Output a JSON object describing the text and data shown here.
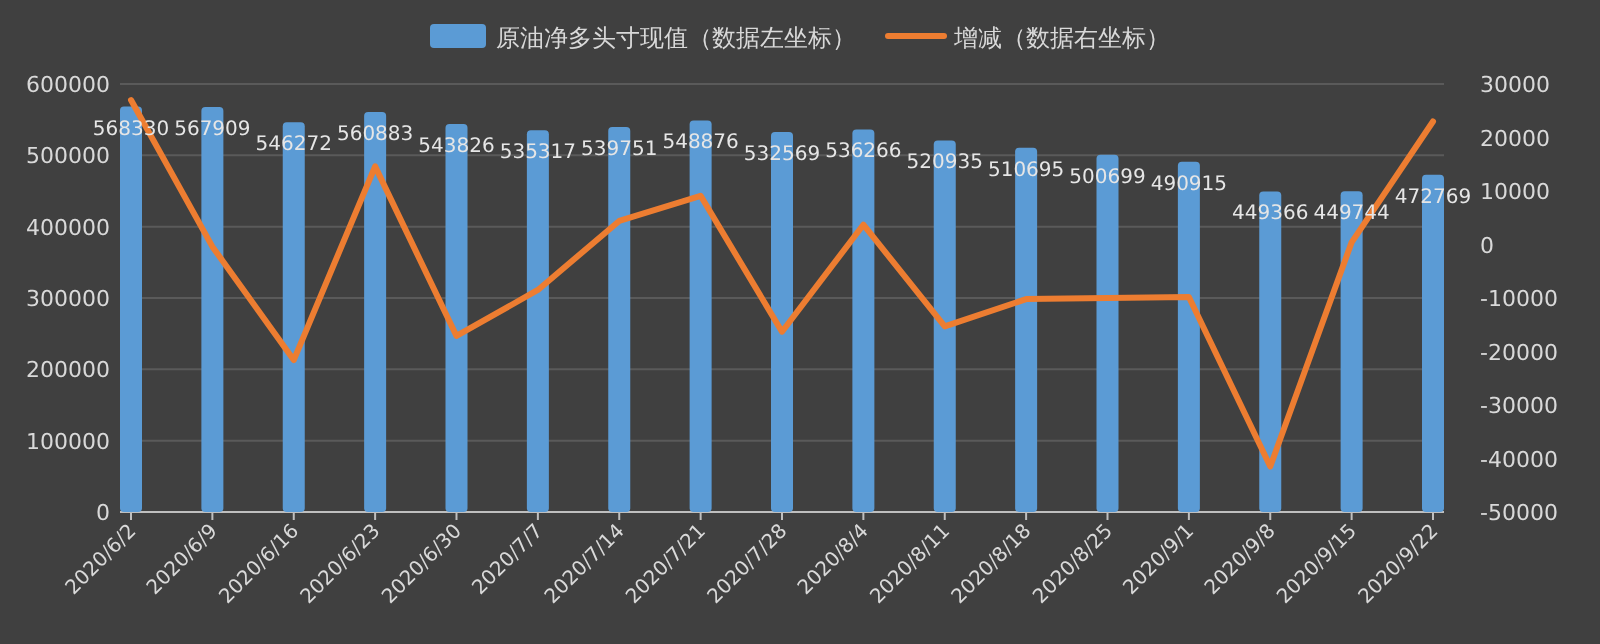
{
  "chart_data": {
    "type": "bar",
    "categories": [
      "2020/6/2",
      "2020/6/9",
      "2020/6/16",
      "2020/6/23",
      "2020/6/30",
      "2020/7/7",
      "2020/7/14",
      "2020/7/21",
      "2020/7/28",
      "2020/8/4",
      "2020/8/11",
      "2020/8/18",
      "2020/8/25",
      "2020/9/1",
      "2020/9/8",
      "2020/9/15",
      "2020/9/22"
    ],
    "series": [
      {
        "name": "原油净多头寸现值（数据左坐标）",
        "color": "#5b9bd5",
        "data_labels": true,
        "values": [
          568330,
          567909,
          546272,
          560883,
          543826,
          535317,
          539751,
          548876,
          532569,
          536266,
          520935,
          510695,
          500699,
          490915,
          449366,
          449744,
          472769
        ]
      },
      {
        "name": "增减（数据右坐标）",
        "type": "line",
        "axis": "y2",
        "color": "#ed7d31",
        "values": [
          27000,
          -400,
          -21600,
          14600,
          -17100,
          -8500,
          4400,
          9100,
          -16300,
          3700,
          -15300,
          -10200,
          -10000,
          -9800,
          -41500,
          400,
          23000
        ]
      }
    ],
    "ylim": [
      0,
      600000
    ],
    "yticks": [
      0,
      100000,
      200000,
      300000,
      400000,
      500000,
      600000
    ],
    "y2lim": [
      -50000,
      30000
    ],
    "y2ticks": [
      -50000,
      -40000,
      -30000,
      -20000,
      -10000,
      0,
      10000,
      20000,
      30000
    ],
    "grid": "y",
    "legend": "top"
  }
}
